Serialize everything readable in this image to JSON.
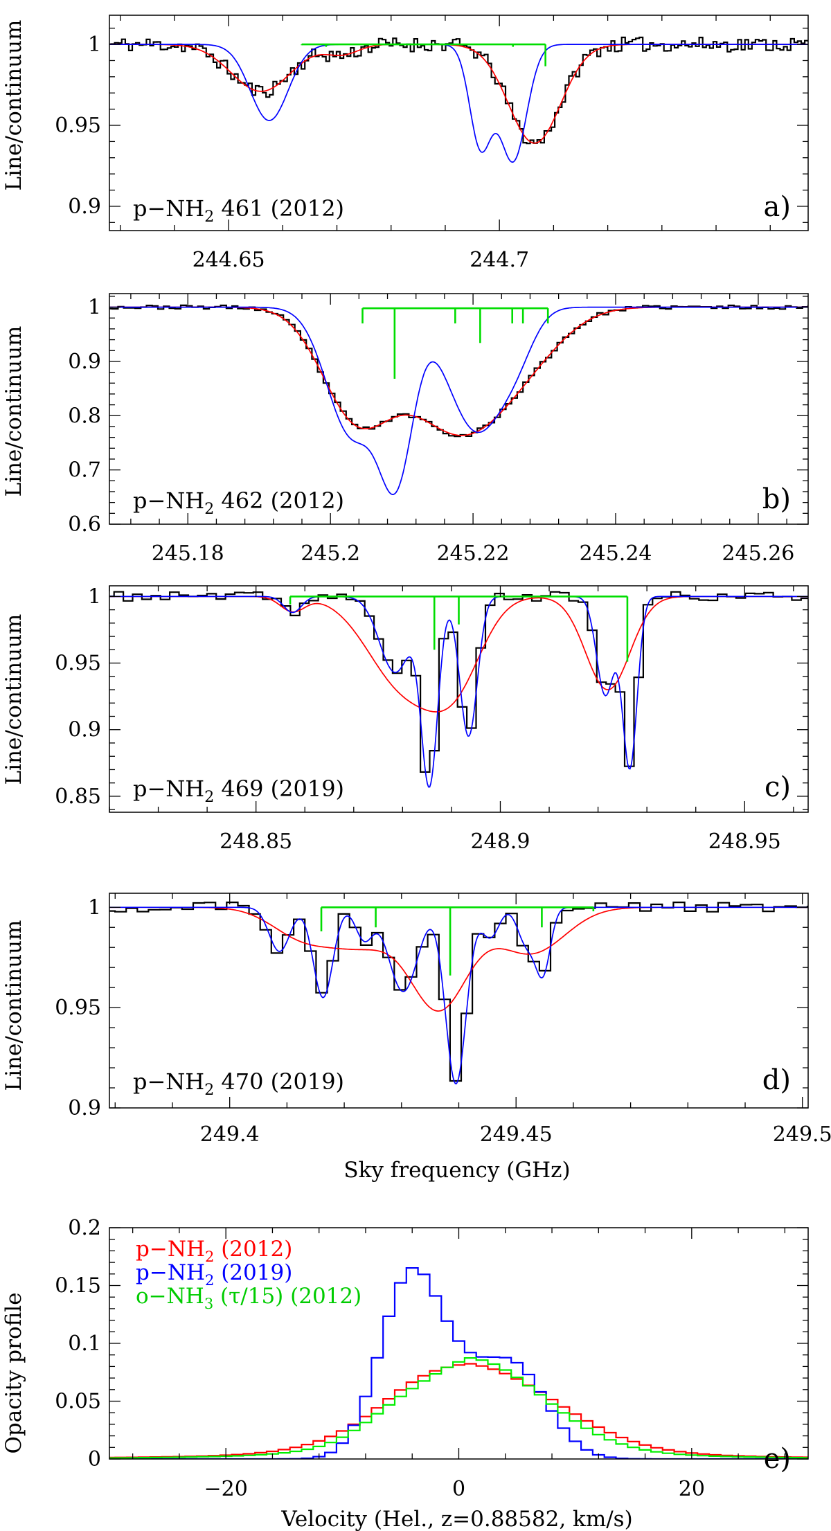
{
  "chart_data": [
    {
      "id": "a",
      "type": "line",
      "label_prefix": "p−NH",
      "label_sub": "2",
      "label_suffix": " 461 (2012)",
      "letter": "a)",
      "ylabel": "Line/continuum",
      "xlim": [
        244.628,
        244.757
      ],
      "ylim": [
        0.885,
        1.018
      ],
      "x_ticks": [
        244.65,
        244.7
      ],
      "x_tick_labels": [
        "244.65",
        "244.7"
      ],
      "y_ticks": [
        0.9,
        0.95,
        1.0
      ],
      "y_tick_labels": [
        "0.9",
        "0.95",
        "1"
      ],
      "components": {
        "baseline": 1.0,
        "start": 244.6635,
        "end": 244.7085,
        "ticks": [
          [
            244.6635,
            0.9995
          ],
          [
            244.668,
            0.9985
          ],
          [
            244.7025,
            0.9985
          ],
          [
            244.7085,
            0.9865
          ]
        ]
      },
      "series": [
        {
          "name": "data",
          "color": "#000000",
          "step": true,
          "dx": 0.00065,
          "noise": 0.0045,
          "seed": 11,
          "model": "red"
        },
        {
          "name": "red_fit",
          "color": "#ff0000",
          "baseline": 1.0,
          "lines": [
            [
              244.656,
              0.029,
              0.0055
            ],
            [
              244.671,
              0.006,
              0.003
            ],
            [
              244.7065,
              0.061,
              0.0048
            ]
          ]
        },
        {
          "name": "blue_fit",
          "color": "#0000ff",
          "baseline": 1.0,
          "lines": [
            [
              244.6575,
              0.047,
              0.0035
            ],
            [
              244.7025,
              0.072,
              0.0025
            ],
            [
              244.6965,
              0.062,
              0.002
            ]
          ]
        }
      ]
    },
    {
      "id": "b",
      "type": "line",
      "label_prefix": "p−NH",
      "label_sub": "2",
      "label_suffix": " 462 (2012)",
      "letter": "b)",
      "ylabel": "Line/continuum",
      "xlim": [
        245.169,
        245.267
      ],
      "ylim": [
        0.6,
        1.025
      ],
      "x_ticks": [
        245.18,
        245.2,
        245.22,
        245.24,
        245.26
      ],
      "x_tick_labels": [
        "245.18",
        "245.2",
        "245.22",
        "245.24",
        "245.26"
      ],
      "y_ticks": [
        0.6,
        0.7,
        0.8,
        0.9,
        1.0
      ],
      "y_tick_labels": [
        "0.6",
        "0.7",
        "0.8",
        "0.9",
        "1"
      ],
      "components": {
        "baseline": 0.998,
        "start": 245.2045,
        "end": 245.2305,
        "ticks": [
          [
            245.2045,
            0.97
          ],
          [
            245.209,
            0.868
          ],
          [
            245.2175,
            0.97
          ],
          [
            245.221,
            0.934
          ],
          [
            245.2255,
            0.97
          ],
          [
            245.227,
            0.97
          ],
          [
            245.2305,
            0.97
          ]
        ]
      },
      "series": [
        {
          "name": "data",
          "color": "#000000",
          "step": true,
          "dx": 0.0008,
          "noise": 0.0035,
          "seed": 23,
          "model": "red"
        },
        {
          "name": "red_fit",
          "color": "#ff0000",
          "baseline": 1.0,
          "lines": [
            [
              245.2035,
              0.19,
              0.0048
            ],
            [
              245.2145,
              0.12,
              0.0062
            ],
            [
              245.2215,
              0.15,
              0.0065
            ],
            [
              245.2295,
              0.03,
              0.005
            ]
          ]
        },
        {
          "name": "blue_fit",
          "color": "#0000ff",
          "baseline": 1.0,
          "lines": [
            [
              245.203,
              0.235,
              0.0035
            ],
            [
              245.2093,
              0.29,
              0.0024
            ],
            [
              245.2205,
              0.225,
              0.0038
            ],
            [
              245.2262,
              0.06,
              0.0025
            ],
            [
              245.216,
              0.01,
              0.002
            ]
          ]
        }
      ]
    },
    {
      "id": "c",
      "type": "line",
      "label_prefix": "p−NH",
      "label_sub": "2",
      "label_suffix": " 469 (2019)",
      "letter": "c)",
      "ylabel": "Line/continuum",
      "xlim": [
        248.82,
        248.963
      ],
      "ylim": [
        0.838,
        1.008
      ],
      "x_ticks": [
        248.85,
        248.9,
        248.95
      ],
      "x_tick_labels": [
        "248.85",
        "248.9",
        "248.95"
      ],
      "y_ticks": [
        0.85,
        0.9,
        0.95,
        1.0
      ],
      "y_tick_labels": [
        "0.85",
        "0.9",
        "0.95",
        "1"
      ],
      "components": {
        "baseline": 1.0,
        "start": 248.857,
        "end": 248.926,
        "ticks": [
          [
            248.857,
            0.994
          ],
          [
            248.8865,
            0.96
          ],
          [
            248.8915,
            0.979
          ],
          [
            248.926,
            0.951
          ]
        ]
      },
      "series": [
        {
          "name": "data",
          "color": "#000000",
          "step": true,
          "dx": 0.0019,
          "noise": 0.0035,
          "seed": 37,
          "model": "blue"
        },
        {
          "name": "red_fit",
          "color": "#ff0000",
          "baseline": 1.0,
          "lines": [
            [
              248.8575,
              0.011,
              0.0025
            ],
            [
              248.8805,
              0.068,
              0.0075
            ],
            [
              248.891,
              0.052,
              0.0055
            ],
            [
              248.922,
              0.07,
              0.0045
            ]
          ]
        },
        {
          "name": "blue_fit",
          "color": "#0000ff",
          "baseline": 1.0,
          "lines": [
            [
              248.8575,
              0.012,
              0.0018
            ],
            [
              248.8785,
              0.057,
              0.0032
            ],
            [
              248.8855,
              0.138,
              0.0017
            ],
            [
              248.8935,
              0.105,
              0.0018
            ],
            [
              248.9215,
              0.074,
              0.0018
            ],
            [
              248.9265,
              0.128,
              0.0015
            ]
          ]
        }
      ]
    },
    {
      "id": "d",
      "type": "line",
      "label_prefix": "p−NH",
      "label_sub": "2",
      "label_suffix": " 470 (2019)",
      "letter": "d)",
      "ylabel": "Line/continuum",
      "xlim": [
        249.379,
        249.501
      ],
      "ylim": [
        0.9,
        1.007
      ],
      "x_ticks": [
        249.4,
        249.45,
        249.5
      ],
      "x_tick_labels": [
        "249.4",
        "249.45",
        "249.5"
      ],
      "y_ticks": [
        0.9,
        0.95,
        1.0
      ],
      "y_tick_labels": [
        "0.9",
        "0.95",
        "1"
      ],
      "components": {
        "baseline": 1.0,
        "start": 249.416,
        "end": 249.4635,
        "ticks": [
          [
            249.416,
            0.988
          ],
          [
            249.4255,
            0.99
          ],
          [
            249.4385,
            0.966
          ],
          [
            249.4545,
            0.99
          ],
          [
            249.4635,
            0.998
          ]
        ]
      },
      "series": [
        {
          "name": "data",
          "color": "#000000",
          "step": true,
          "dx": 0.00195,
          "noise": 0.0026,
          "seed": 51,
          "model": "blue"
        },
        {
          "name": "red_fit",
          "color": "#ff0000",
          "baseline": 1.0,
          "lines": [
            [
              249.413,
              0.015,
              0.0055
            ],
            [
              249.4235,
              0.017,
              0.0055
            ],
            [
              249.4365,
              0.05,
              0.005
            ],
            [
              249.4525,
              0.023,
              0.006
            ]
          ]
        },
        {
          "name": "blue_fit",
          "color": "#0000ff",
          "baseline": 1.0,
          "lines": [
            [
              249.4087,
              0.022,
              0.0018
            ],
            [
              249.4163,
              0.045,
              0.0017
            ],
            [
              249.4235,
              0.016,
              0.0015
            ],
            [
              249.4303,
              0.042,
              0.0025
            ],
            [
              249.4395,
              0.088,
              0.0018
            ],
            [
              249.4455,
              0.015,
              0.0015
            ],
            [
              249.4518,
              0.018,
              0.0015
            ],
            [
              249.4547,
              0.032,
              0.0013
            ]
          ]
        }
      ],
      "xlabel": "Sky frequency (GHz)"
    },
    {
      "id": "e",
      "type": "line",
      "letter": "e)",
      "ylabel": "Opacity profile",
      "xlabel": "Velocity (Hel., z=0.88582, km/s)",
      "xlim": [
        -30,
        30
      ],
      "ylim": [
        0,
        0.2
      ],
      "x_ticks": [
        -20,
        0,
        20
      ],
      "x_tick_labels": [
        "−20",
        "0",
        "20"
      ],
      "y_ticks": [
        0,
        0.05,
        0.1,
        0.15,
        0.2
      ],
      "y_tick_labels": [
        "0",
        "0.05",
        "0.1",
        "0.15",
        "0.2"
      ],
      "legend": [
        {
          "prefix": "p−NH",
          "sub": "2",
          "suffix": " (2012)",
          "color": "#ff0000"
        },
        {
          "prefix": "p−NH",
          "sub": "2",
          "suffix": " (2019)",
          "color": "#0000ff"
        },
        {
          "prefix": "o−NH",
          "sub": "3",
          "suffix": " (τ/15) (2012)",
          "color": "#00ee00"
        }
      ],
      "series": [
        {
          "name": "p-NH2 (2012)",
          "color": "#ff0000",
          "step": true,
          "dx": 1.0,
          "profile": [
            [
              1.5,
              0.067,
              7.0
            ],
            [
              -4.0,
              0.008,
              3.0
            ]
          ],
          "wing": [
            0.0135,
            13.0
          ]
        },
        {
          "name": "p-NH2 (2019)",
          "color": "#0000ff",
          "step": true,
          "dx": 1.0,
          "profile": [
            [
              -4.0,
              0.162,
              2.7
            ],
            [
              4.5,
              0.082,
              3.0
            ],
            [
              0.5,
              0.022,
              2.0
            ]
          ],
          "wing": [
            0.0,
            10.0
          ]
        },
        {
          "name": "o-NH3 (tau/15) (2012)",
          "color": "#00ee00",
          "step": true,
          "dx": 1.0,
          "profile": [
            [
              1.5,
              0.069,
              6.0
            ],
            [
              -6.0,
              0.006,
              2.5
            ]
          ],
          "wing": [
            0.0185,
            10.0
          ]
        }
      ]
    }
  ]
}
